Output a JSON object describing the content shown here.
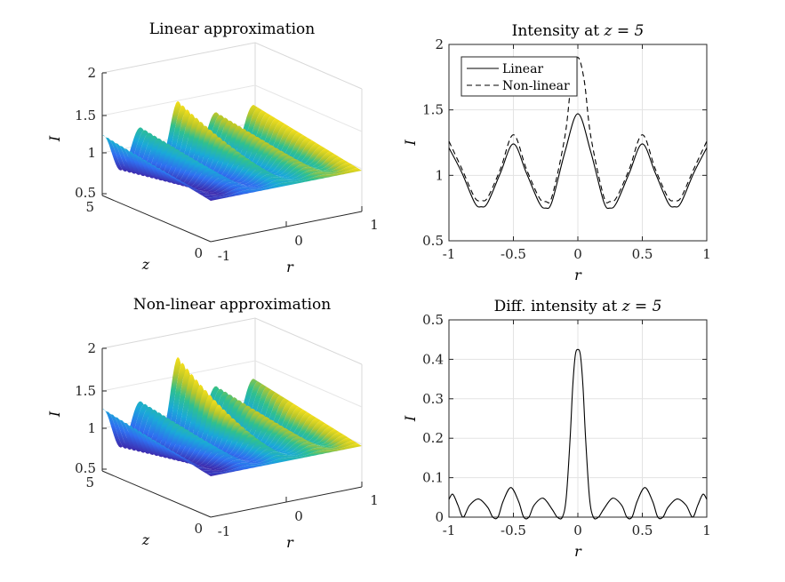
{
  "chart_data": [
    {
      "type": "surface",
      "title": "Linear approximation",
      "xlabel": "r",
      "ylabel": "z",
      "zlabel": "I",
      "xlim": [
        -1,
        1
      ],
      "ylim": [
        0,
        5
      ],
      "zlim": [
        0.5,
        2
      ],
      "xticks": [
        "-1",
        "0",
        "1"
      ],
      "yticks": [
        "0",
        "5"
      ],
      "zticks": [
        "0.5",
        "1",
        "1.5",
        "2"
      ],
      "grid": true,
      "model": "linear"
    },
    {
      "type": "line",
      "title_text": "Intensity at ",
      "title_math": "z = 5",
      "xlabel": "r",
      "ylabel": "I",
      "xlim": [
        -1,
        1
      ],
      "ylim": [
        0.5,
        2
      ],
      "xticks": [
        "-1",
        "-0.5",
        "0",
        "0.5",
        "1"
      ],
      "yticks": [
        "0.5",
        "1",
        "1.5",
        "2"
      ],
      "grid": true,
      "legend_position": "top-left",
      "series": [
        {
          "name": "Linear",
          "style": "solid",
          "x": [
            -1,
            -0.9,
            -0.8,
            -0.75,
            -0.7,
            -0.6,
            -0.5,
            -0.4,
            -0.3,
            -0.25,
            -0.2,
            -0.1,
            0,
            0.1,
            0.2,
            0.25,
            0.3,
            0.4,
            0.5,
            0.6,
            0.7,
            0.75,
            0.8,
            0.9,
            1
          ],
          "y": [
            1.21,
            1.02,
            0.79,
            0.76,
            0.79,
            1.02,
            1.24,
            1.02,
            0.79,
            0.75,
            0.8,
            1.18,
            1.47,
            1.18,
            0.8,
            0.75,
            0.79,
            1.02,
            1.24,
            1.02,
            0.79,
            0.76,
            0.79,
            1.02,
            1.21
          ]
        },
        {
          "name": "Non-linear",
          "style": "dashed",
          "x": [
            -1,
            -0.9,
            -0.8,
            -0.75,
            -0.7,
            -0.6,
            -0.5,
            -0.4,
            -0.3,
            -0.25,
            -0.2,
            -0.1,
            -0.05,
            0,
            0.05,
            0.1,
            0.2,
            0.25,
            0.3,
            0.4,
            0.5,
            0.6,
            0.7,
            0.75,
            0.8,
            0.9,
            1
          ],
          "y": [
            1.26,
            1.05,
            0.83,
            0.81,
            0.83,
            1.05,
            1.31,
            1.05,
            0.83,
            0.8,
            0.84,
            1.3,
            1.72,
            1.9,
            1.72,
            1.3,
            0.84,
            0.8,
            0.83,
            1.05,
            1.31,
            1.05,
            0.83,
            0.81,
            0.83,
            1.05,
            1.26
          ]
        }
      ]
    },
    {
      "type": "surface",
      "title": "Non-linear approximation",
      "xlabel": "r",
      "ylabel": "z",
      "zlabel": "I",
      "xlim": [
        -1,
        1
      ],
      "ylim": [
        0,
        5
      ],
      "zlim": [
        0.5,
        2
      ],
      "xticks": [
        "-1",
        "0",
        "1"
      ],
      "yticks": [
        "0",
        "5"
      ],
      "zticks": [
        "0.5",
        "1",
        "1.5",
        "2"
      ],
      "grid": true,
      "model": "nonlinear"
    },
    {
      "type": "line",
      "title_text": "Diff. intensity at ",
      "title_math": "z = 5",
      "xlabel": "r",
      "ylabel": "I",
      "xlim": [
        -1,
        1
      ],
      "ylim": [
        0,
        0.5
      ],
      "xticks": [
        "-1",
        "-0.5",
        "0",
        "0.5",
        "1"
      ],
      "yticks": [
        "0",
        "0.1",
        "0.2",
        "0.3",
        "0.4",
        "0.5"
      ],
      "grid": true,
      "series": [
        {
          "style": "solid",
          "x": [
            -1,
            -0.97,
            -0.93,
            -0.89,
            -0.84,
            -0.77,
            -0.7,
            -0.66,
            -0.62,
            -0.58,
            -0.52,
            -0.46,
            -0.42,
            -0.38,
            -0.34,
            -0.27,
            -0.2,
            -0.16,
            -0.12,
            -0.09,
            -0.06,
            -0.04,
            -0.02,
            0,
            0.02,
            0.04,
            0.06,
            0.09,
            0.12,
            0.16,
            0.2,
            0.27,
            0.34,
            0.38,
            0.42,
            0.46,
            0.52,
            0.58,
            0.62,
            0.66,
            0.7,
            0.77,
            0.84,
            0.89,
            0.93,
            0.97,
            1
          ],
          "y": [
            0.045,
            0.058,
            0.03,
            0.0,
            0.03,
            0.046,
            0.025,
            0.0,
            0.0,
            0.04,
            0.075,
            0.04,
            0.0,
            0.0,
            0.03,
            0.048,
            0.02,
            0.0,
            0.0,
            0.05,
            0.2,
            0.33,
            0.41,
            0.425,
            0.41,
            0.33,
            0.2,
            0.05,
            0.0,
            0.0,
            0.02,
            0.048,
            0.03,
            0.0,
            0.0,
            0.04,
            0.075,
            0.04,
            0.0,
            0.0,
            0.025,
            0.046,
            0.03,
            0.0,
            0.03,
            0.058,
            0.045
          ]
        }
      ]
    }
  ]
}
